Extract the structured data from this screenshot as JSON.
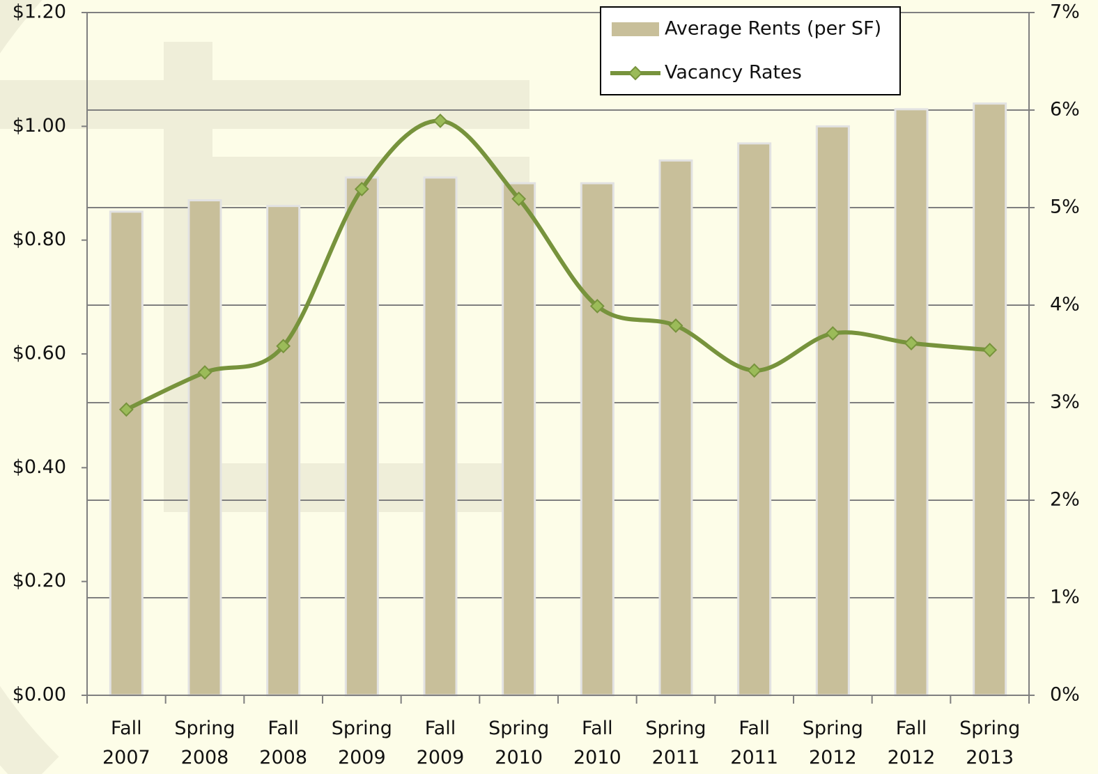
{
  "chart_data": {
    "type": "bar-line",
    "categories": [
      "Fall 2007",
      "Spring 2008",
      "Fall 2008",
      "Spring 2009",
      "Fall 2009",
      "Spring 2010",
      "Fall 2010",
      "Spring 2011",
      "Fall 2011",
      "Spring 2012",
      "Fall 2012",
      "Spring 2013"
    ],
    "series": [
      {
        "name": "Average Rents (per SF)",
        "type": "bar",
        "color": "#c8bf9a",
        "values": [
          0.85,
          0.87,
          0.86,
          0.91,
          0.91,
          0.9,
          0.9,
          0.94,
          0.97,
          1.0,
          1.03,
          1.04
        ]
      },
      {
        "name": "Vacancy Rates",
        "type": "line",
        "axis": "y2",
        "color": "#77933c",
        "marker_color": "#9bbb59",
        "values": [
          2.93,
          3.31,
          3.58,
          5.19,
          5.89,
          5.09,
          3.99,
          3.79,
          3.33,
          3.71,
          3.61,
          3.54
        ]
      }
    ],
    "ylim": [
      0,
      1.2
    ],
    "yticks": [
      {
        "value": 0,
        "label": "$0.00"
      },
      {
        "value": 0.2,
        "label": "$0.20"
      },
      {
        "value": 0.4,
        "label": "$0.40"
      },
      {
        "value": 0.6,
        "label": "$0.60"
      },
      {
        "value": 0.8,
        "label": "$0.80"
      },
      {
        "value": 1.0,
        "label": "$1.00"
      },
      {
        "value": 1.2,
        "label": "$1.20"
      }
    ],
    "y2lim": [
      0,
      7
    ],
    "y2ticks": [
      {
        "value": 0,
        "label": "0%"
      },
      {
        "value": 1,
        "label": "1%"
      },
      {
        "value": 2,
        "label": "2%"
      },
      {
        "value": 3,
        "label": "3%"
      },
      {
        "value": 4,
        "label": "4%"
      },
      {
        "value": 5,
        "label": "5%"
      },
      {
        "value": 6,
        "label": "6%"
      },
      {
        "value": 7,
        "label": "7%"
      }
    ],
    "grid": true,
    "legend": "top"
  }
}
